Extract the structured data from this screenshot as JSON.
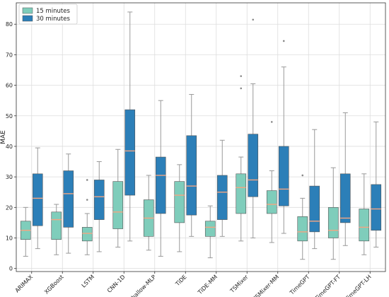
{
  "chart_data": {
    "type": "boxplot",
    "title": "",
    "xlabel": "",
    "ylabel": "MAE",
    "ylim": [
      -1,
      87
    ],
    "yticks": [
      0,
      10,
      20,
      30,
      40,
      50,
      60,
      70,
      80
    ],
    "grid": true,
    "legend_position": "top-left",
    "categories": [
      "ARIMAX",
      "XGBoost",
      "LSTM",
      "CNN-1D",
      "Shallow-MLP",
      "TiDE",
      "TiDE-MM",
      "TSMixer",
      "TSMixer-MM",
      "TimeGPT",
      "TimeGPT-FT",
      "TimeGPT-LH"
    ],
    "series": [
      {
        "name": "15 minutes",
        "color": "#7fcdbb",
        "boxes": [
          {
            "whislo": 4,
            "q1": 9.5,
            "med": 12.5,
            "q3": 15.5,
            "whishi": 20,
            "fliers": []
          },
          {
            "whislo": 4.5,
            "q1": 9.5,
            "med": 16,
            "q3": 18.5,
            "whishi": 21,
            "fliers": []
          },
          {
            "whislo": 4.5,
            "q1": 9,
            "med": 11.5,
            "q3": 13.5,
            "whishi": 18,
            "fliers": [
              22.5,
              29
            ]
          },
          {
            "whislo": 7,
            "q1": 13,
            "med": 18.5,
            "q3": 28.5,
            "whishi": 39,
            "fliers": []
          },
          {
            "whislo": 6,
            "q1": 10.5,
            "med": 16.5,
            "q3": 22.5,
            "whishi": 30.5,
            "fliers": []
          },
          {
            "whislo": 5.5,
            "q1": 15,
            "med": 24,
            "q3": 28.5,
            "whishi": 34,
            "fliers": []
          },
          {
            "whislo": 3.5,
            "q1": 10.5,
            "med": 13.5,
            "q3": 15.5,
            "whishi": 20.5,
            "fliers": []
          },
          {
            "whislo": 9,
            "q1": 18,
            "med": 26.5,
            "q3": 31,
            "whishi": 36.5,
            "fliers": [
              59,
              63
            ]
          },
          {
            "whislo": 8.5,
            "q1": 18,
            "med": 21,
            "q3": 25.5,
            "whishi": 32,
            "fliers": [
              48
            ]
          },
          {
            "whislo": 3,
            "q1": 9,
            "med": 12,
            "q3": 17,
            "whishi": 23,
            "fliers": [
              30.5
            ]
          },
          {
            "whislo": 3,
            "q1": 10,
            "med": 12.5,
            "q3": 20,
            "whishi": 33,
            "fliers": []
          },
          {
            "whislo": 4.5,
            "q1": 9,
            "med": 13.5,
            "q3": 19.5,
            "whishi": 31,
            "fliers": []
          }
        ]
      },
      {
        "name": "30 minutes",
        "color": "#2c7fb8",
        "boxes": [
          {
            "whislo": 6.5,
            "q1": 14,
            "med": 23,
            "q3": 31,
            "whishi": 39.5,
            "fliers": []
          },
          {
            "whislo": 5,
            "q1": 13.5,
            "med": 24.5,
            "q3": 32,
            "whishi": 37.5,
            "fliers": []
          },
          {
            "whislo": 5.5,
            "q1": 16,
            "med": 23.5,
            "q3": 29,
            "whishi": 35,
            "fliers": []
          },
          {
            "whislo": 9,
            "q1": 24,
            "med": 38.5,
            "q3": 52,
            "whishi": 84,
            "fliers": []
          },
          {
            "whislo": 4,
            "q1": 18,
            "med": 30.5,
            "q3": 36.5,
            "whishi": 55,
            "fliers": []
          },
          {
            "whislo": 10.5,
            "q1": 17.5,
            "med": 27,
            "q3": 43.5,
            "whishi": 57,
            "fliers": []
          },
          {
            "whislo": 10.5,
            "q1": 16,
            "med": 25,
            "q3": 30.5,
            "whishi": 42,
            "fliers": []
          },
          {
            "whislo": 10,
            "q1": 23.5,
            "med": 29,
            "q3": 44,
            "whishi": 60.5,
            "fliers": [
              81.5
            ]
          },
          {
            "whislo": 11.5,
            "q1": 20.5,
            "med": 26,
            "q3": 40,
            "whishi": 66,
            "fliers": [
              74.5
            ]
          },
          {
            "whislo": 6.5,
            "q1": 12,
            "med": 15.5,
            "q3": 27,
            "whishi": 45.5,
            "fliers": []
          },
          {
            "whislo": 7.5,
            "q1": 15,
            "med": 16.5,
            "q3": 31,
            "whishi": 51,
            "fliers": []
          },
          {
            "whislo": 7,
            "q1": 12.5,
            "med": 19.5,
            "q3": 27.5,
            "whishi": 48,
            "fliers": []
          }
        ]
      }
    ],
    "median_color": "#f4a582"
  }
}
